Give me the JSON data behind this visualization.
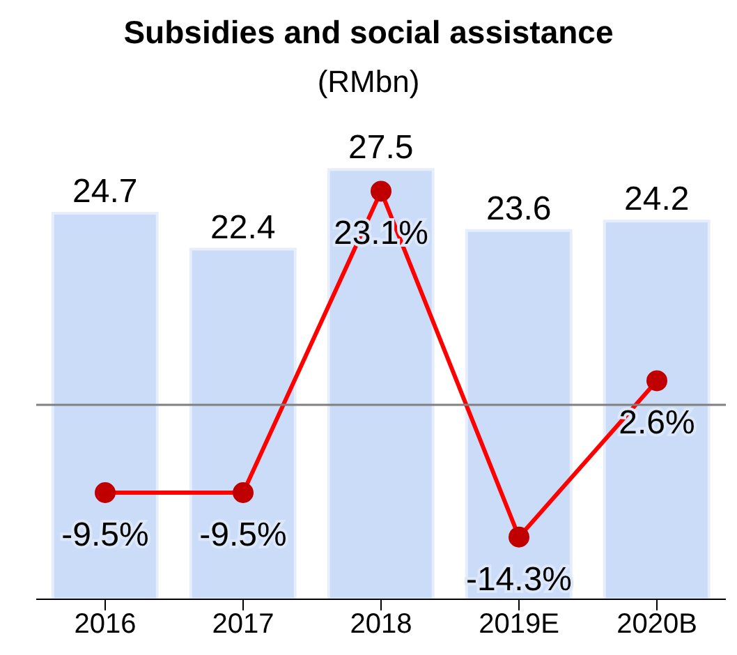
{
  "chart_data": {
    "type": "bar",
    "title": "Subsidies and social assistance",
    "subtitle": "(RMbn)",
    "categories": [
      "2016",
      "2017",
      "2018",
      "2019E",
      "2020B"
    ],
    "series": [
      {
        "color": "#cadcf7",
        "values": [
          24.7,
          22.4,
          27.5,
          23.6,
          24.2
        ],
        "value_labels": [
          "24.7",
          "22.4",
          "27.5",
          "23.6",
          "24.2"
        ]
      },
      {
        "type": "line",
        "axis": "y2",
        "color": "#ff0000",
        "values": [
          -9.5,
          -9.5,
          23.1,
          -14.3,
          2.6
        ],
        "value_labels": [
          "-9.5%",
          "-9.5%",
          "23.1%",
          "-14.3%",
          "2.6%"
        ]
      }
    ],
    "ref_lines": [
      {
        "axis": "y2",
        "value": 0,
        "color": "#808080"
      }
    ],
    "tick_labels": "x",
    "marker": "circle",
    "legend": false,
    "grid": false
  }
}
